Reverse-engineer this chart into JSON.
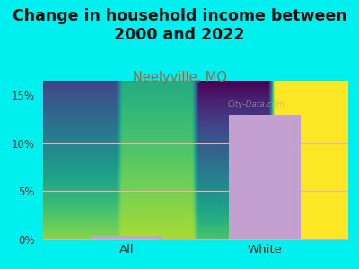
{
  "title": "Change in household income between\n2000 and 2022",
  "subtitle": "Neelyville, MO",
  "categories": [
    "All",
    "White"
  ],
  "values": [
    0.35,
    13.0
  ],
  "bar_colors": [
    "#b8aac8",
    "#c4a0d0"
  ],
  "background_color": "#00f0f0",
  "plot_bg_top": "#e0f0d8",
  "plot_bg_bottom": "#f8f8f4",
  "ylim": [
    0,
    16.5
  ],
  "yticks": [
    0,
    5,
    10,
    15
  ],
  "ytick_labels": [
    "0%",
    "5%",
    "10%",
    "15%"
  ],
  "title_fontsize": 12.5,
  "subtitle_fontsize": 10.5,
  "subtitle_color": "#996644",
  "grid_color": "#f0b0b0",
  "watermark": "City-Data.com"
}
